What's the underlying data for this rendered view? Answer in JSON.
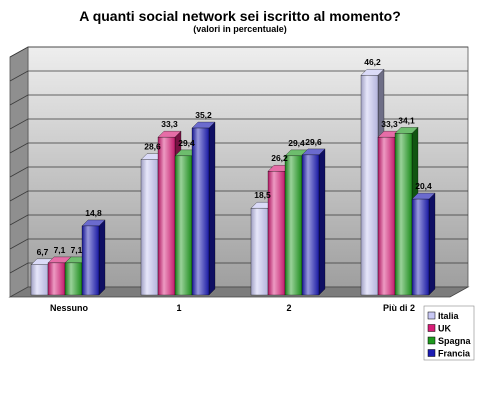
{
  "chart_data": {
    "type": "bar",
    "title": "A quanti social network sei iscritto al momento?",
    "subtitle": "(valori in percentuale)",
    "categories": [
      "Nessuno",
      "1",
      "2",
      "Più di 2"
    ],
    "series": [
      {
        "name": "Italia",
        "color": "#c8c8f4",
        "values": [
          6.7,
          28.6,
          18.5,
          46.2
        ]
      },
      {
        "name": "UK",
        "color": "#d81e78",
        "values": [
          7.1,
          33.3,
          26.2,
          33.3
        ]
      },
      {
        "name": "Spagna",
        "color": "#1f9a1f",
        "values": [
          7.1,
          29.4,
          29.4,
          34.1
        ]
      },
      {
        "name": "Francia",
        "color": "#1c1cb4",
        "values": [
          14.8,
          35.2,
          29.6,
          20.4
        ]
      }
    ],
    "value_labels": [
      [
        "6,7",
        "28,6",
        "18,5",
        "46,2"
      ],
      [
        "7,1",
        "33,3",
        "26,2",
        "33,3"
      ],
      [
        "7,1",
        "29,4",
        "29,4",
        "34,1"
      ],
      [
        "14,8",
        "35,2",
        "29,6",
        "20,4"
      ]
    ],
    "ylim": [
      0,
      50
    ],
    "grid": true,
    "legend_position": "bottom-right",
    "background_color": "#c9c9c9"
  }
}
